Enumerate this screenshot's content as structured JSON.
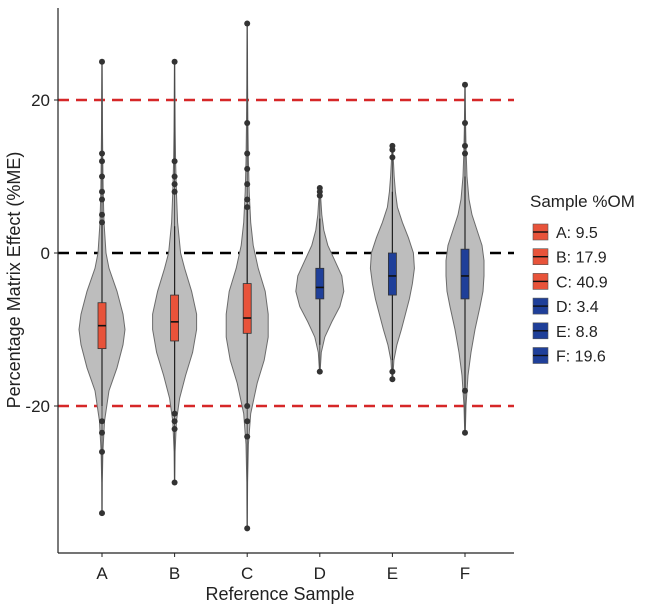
{
  "chart_data": {
    "type": "violin",
    "xlabel": "Reference Sample",
    "ylabel": "Percentage Matrix Effect (%ME)",
    "categories": [
      "A",
      "B",
      "C",
      "D",
      "E",
      "F"
    ],
    "ylim": [
      -40,
      30.5
    ],
    "yticks": [
      -20,
      0,
      20
    ],
    "reference_lines": [
      {
        "y": 20,
        "color": "#d62728",
        "style": "dashed"
      },
      {
        "y": 0,
        "color": "#000000",
        "style": "dashed"
      },
      {
        "y": -20,
        "color": "#d62728",
        "style": "dashed"
      }
    ],
    "legend": {
      "title": "Sample %OM",
      "position": "right",
      "entries": [
        {
          "label": "A: 9.5",
          "color": "#e8533a"
        },
        {
          "label": "B: 17.9",
          "color": "#e8533a"
        },
        {
          "label": "C: 40.9",
          "color": "#e8533a"
        },
        {
          "label": "D: 3.4",
          "color": "#1f3f99"
        },
        {
          "label": "E: 8.8",
          "color": "#1f3f99"
        },
        {
          "label": "F: 19.6",
          "color": "#1f3f99"
        }
      ]
    },
    "series": [
      {
        "name": "A",
        "om": 9.5,
        "color": "#e8533a",
        "min": -34,
        "max": 25,
        "q1": -12.5,
        "median": -9.5,
        "q3": -6.5,
        "whisker_low": -20,
        "whisker_high": 4,
        "outliers": [
          25,
          13,
          12,
          10,
          8,
          7,
          5,
          4,
          -22,
          -23.5,
          -26,
          -34
        ],
        "density": [
          [
            -34,
            0.15
          ],
          [
            -30,
            0.3
          ],
          [
            -26,
            0.9
          ],
          [
            -22,
            2.5
          ],
          [
            -18,
            7
          ],
          [
            -15,
            15
          ],
          [
            -12,
            21
          ],
          [
            -10,
            23
          ],
          [
            -8,
            21
          ],
          [
            -5,
            15
          ],
          [
            -2,
            7
          ],
          [
            0,
            4
          ],
          [
            4,
            2
          ],
          [
            8,
            1.2
          ],
          [
            12,
            0.8
          ],
          [
            16,
            0.5
          ],
          [
            20,
            0.4
          ],
          [
            25,
            0.2
          ]
        ]
      },
      {
        "name": "B",
        "om": 17.9,
        "color": "#e8533a",
        "min": -30,
        "max": 25,
        "q1": -11.5,
        "median": -9,
        "q3": -5.5,
        "whisker_low": -21,
        "whisker_high": 3.5,
        "outliers": [
          25,
          12,
          10,
          9,
          8,
          -21,
          -22,
          -23,
          -30
        ],
        "density": [
          [
            -30,
            0.2
          ],
          [
            -26,
            0.5
          ],
          [
            -22,
            1.8
          ],
          [
            -19,
            5
          ],
          [
            -16,
            11
          ],
          [
            -13,
            18
          ],
          [
            -10,
            22
          ],
          [
            -8,
            22
          ],
          [
            -5,
            17
          ],
          [
            -2,
            10
          ],
          [
            0,
            6
          ],
          [
            4,
            3
          ],
          [
            8,
            1.8
          ],
          [
            12,
            1
          ],
          [
            16,
            0.6
          ],
          [
            20,
            0.4
          ],
          [
            25,
            0.2
          ]
        ]
      },
      {
        "name": "C",
        "om": 40.9,
        "color": "#e8533a",
        "min": -36,
        "max": 30,
        "q1": -10.5,
        "median": -8.5,
        "q3": -4,
        "whisker_low": -20,
        "whisker_high": 6,
        "outliers": [
          30,
          17,
          13,
          11,
          9,
          7,
          6,
          -20,
          -22,
          -24,
          -36
        ],
        "density": [
          [
            -36,
            0.15
          ],
          [
            -30,
            0.4
          ],
          [
            -25,
            1.2
          ],
          [
            -21,
            3.5
          ],
          [
            -17,
            10
          ],
          [
            -14,
            17
          ],
          [
            -11,
            21
          ],
          [
            -8,
            21
          ],
          [
            -5,
            18
          ],
          [
            -2,
            11
          ],
          [
            1,
            6
          ],
          [
            4,
            3.5
          ],
          [
            8,
            2
          ],
          [
            12,
            1.2
          ],
          [
            17,
            0.7
          ],
          [
            22,
            0.4
          ],
          [
            26,
            0.3
          ],
          [
            30,
            0.15
          ]
        ]
      },
      {
        "name": "D",
        "om": 3.4,
        "color": "#1f3f99",
        "min": -15.5,
        "max": 8.5,
        "q1": -6,
        "median": -4.5,
        "q3": -2,
        "whisker_low": -12,
        "whisker_high": 4.5,
        "outliers": [
          8.5,
          8,
          7.5,
          -15.5
        ],
        "density": [
          [
            -15.5,
            0.3
          ],
          [
            -13,
            1.5
          ],
          [
            -11,
            5
          ],
          [
            -9,
            12
          ],
          [
            -7,
            20
          ],
          [
            -5,
            24
          ],
          [
            -3,
            22
          ],
          [
            -1,
            15
          ],
          [
            1,
            8
          ],
          [
            3,
            4
          ],
          [
            5,
            2
          ],
          [
            7,
            1
          ],
          [
            8.5,
            0.4
          ]
        ]
      },
      {
        "name": "E",
        "om": 8.8,
        "color": "#1f3f99",
        "min": -16.5,
        "max": 14,
        "q1": -5.5,
        "median": -3,
        "q3": 0,
        "whisker_low": -14,
        "whisker_high": 8,
        "outliers": [
          14,
          13.5,
          12.5,
          -15.5,
          -16.5
        ],
        "density": [
          [
            -16.5,
            0.3
          ],
          [
            -14,
            1.5
          ],
          [
            -12,
            4.5
          ],
          [
            -10,
            9
          ],
          [
            -8,
            13
          ],
          [
            -6,
            17
          ],
          [
            -4,
            20
          ],
          [
            -2,
            22
          ],
          [
            0,
            21
          ],
          [
            2,
            16
          ],
          [
            4,
            10
          ],
          [
            6,
            5
          ],
          [
            8,
            3
          ],
          [
            10,
            1.8
          ],
          [
            12,
            1
          ],
          [
            14,
            0.3
          ]
        ]
      },
      {
        "name": "F",
        "om": 19.6,
        "color": "#1f3f99",
        "min": -23.5,
        "max": 22,
        "q1": -6,
        "median": -3,
        "q3": 0.5,
        "whisker_low": -18,
        "whisker_high": 10,
        "outliers": [
          22,
          17,
          14,
          13,
          -18,
          -23.5
        ],
        "density": [
          [
            -23.5,
            0.3
          ],
          [
            -20,
            1
          ],
          [
            -16,
            3
          ],
          [
            -13,
            6
          ],
          [
            -10,
            10
          ],
          [
            -7,
            15
          ],
          [
            -5,
            18
          ],
          [
            -3,
            19
          ],
          [
            -1,
            19
          ],
          [
            1,
            17
          ],
          [
            3,
            12
          ],
          [
            5,
            7
          ],
          [
            7,
            4
          ],
          [
            10,
            2
          ],
          [
            13,
            1.2
          ],
          [
            16,
            0.7
          ],
          [
            19,
            0.4
          ],
          [
            22,
            0.2
          ]
        ]
      }
    ]
  }
}
